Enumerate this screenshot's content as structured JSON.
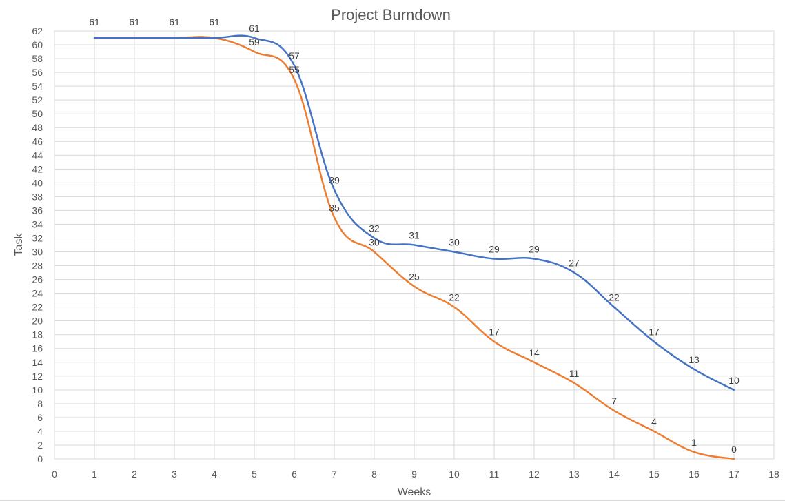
{
  "chart_data": {
    "type": "line",
    "title": "Project Burndown",
    "xlabel": "Weeks",
    "ylabel": "Task",
    "xlim": [
      0,
      18
    ],
    "ylim": [
      0,
      62
    ],
    "x_tick_step": 1,
    "y_tick_step": 2,
    "grid": true,
    "smooth": true,
    "series": [
      {
        "color": "#4472c4",
        "x": [
          1,
          2,
          3,
          4,
          5,
          6,
          7,
          8,
          9,
          10,
          11,
          12,
          13,
          14,
          15,
          16,
          17
        ],
        "values": [
          61,
          61,
          61,
          61,
          61,
          57,
          39,
          32,
          31,
          30,
          29,
          29,
          27,
          22,
          17,
          13,
          10
        ]
      },
      {
        "color": "#ed7d31",
        "x": [
          1,
          2,
          3,
          4,
          5,
          6,
          7,
          8,
          9,
          10,
          11,
          12,
          13,
          14,
          15,
          16,
          17
        ],
        "values": [
          61,
          61,
          61,
          61,
          59,
          55,
          35,
          30,
          25,
          22,
          17,
          14,
          11,
          7,
          4,
          1,
          0
        ]
      }
    ]
  }
}
